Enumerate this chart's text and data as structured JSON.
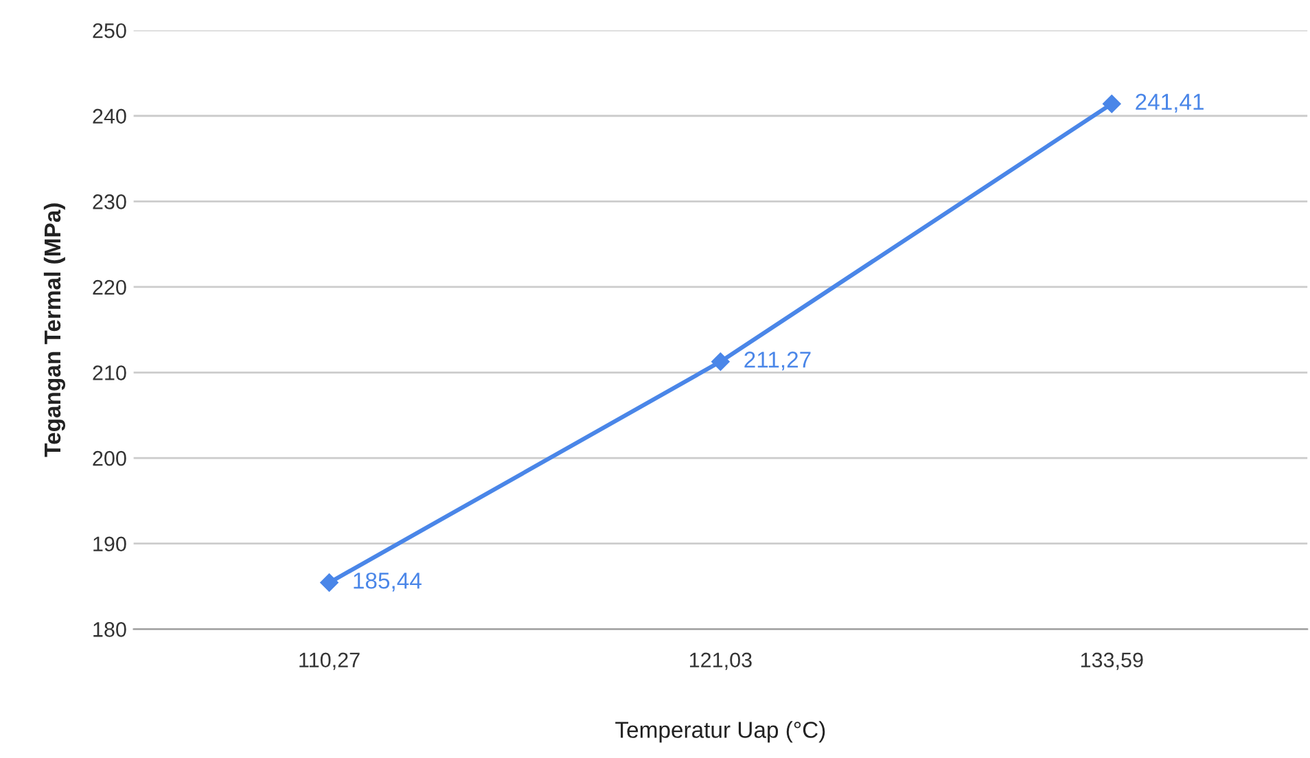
{
  "chart_data": {
    "type": "line",
    "xlabel": "Temperatur Uap (°C)",
    "ylabel": "Tegangan Termal (MPa)",
    "categories": [
      "110,27",
      "121,03",
      "133,59"
    ],
    "series": [
      {
        "color": "#4a86e8",
        "values": [
          185.44,
          211.27,
          241.41
        ],
        "value_labels": [
          "185,44",
          "211,27",
          "241,41"
        ]
      }
    ],
    "ylim": [
      180,
      250
    ],
    "yticks": [
      180,
      190,
      200,
      210,
      220,
      230,
      240,
      250
    ],
    "grid": "y",
    "marker": "diamond",
    "line_style": "solid",
    "legend": false
  }
}
